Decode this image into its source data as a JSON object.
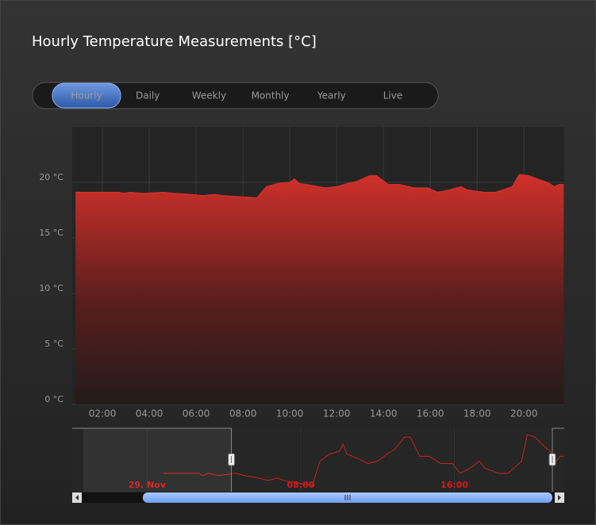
{
  "chart_data": {
    "type": "area",
    "title": "Hourly Temperature Measurements [°C]",
    "range_selector": [
      "Hourly",
      "Daily",
      "Weekly",
      "Monthly",
      "Yearly",
      "Live"
    ],
    "selected_range": "Hourly",
    "x": [
      0.85,
      2.7,
      2.9,
      3.2,
      3.7,
      4.6,
      5.1,
      5.8,
      6.3,
      6.8,
      7.1,
      7.8,
      8.6,
      9.0,
      9.5,
      10.0,
      10.2,
      10.4,
      11.0,
      11.5,
      12.0,
      12.5,
      12.9,
      13.4,
      13.7,
      14.2,
      14.7,
      15.3,
      15.9,
      16.3,
      16.8,
      17.3,
      17.6,
      18.3,
      18.8,
      19.5,
      19.8,
      20.2,
      20.7,
      21.0,
      21.3,
      21.5,
      21.7
    ],
    "series": [
      {
        "name": "Temperature",
        "color": "#d0302a",
        "values": [
          19.1,
          19.1,
          19.0,
          19.1,
          19.0,
          19.1,
          19.0,
          18.9,
          18.8,
          18.9,
          18.8,
          18.7,
          18.6,
          19.6,
          19.9,
          20.0,
          20.3,
          19.9,
          19.7,
          19.5,
          19.6,
          19.9,
          20.1,
          20.6,
          20.6,
          19.8,
          19.8,
          19.5,
          19.5,
          19.1,
          19.3,
          19.6,
          19.3,
          19.1,
          19.1,
          19.6,
          20.7,
          20.6,
          20.2,
          20.0,
          19.6,
          19.8,
          19.8
        ]
      }
    ],
    "xlim": [
      0.71,
      21.72
    ],
    "xticks": [
      {
        "value": 2,
        "label": "02:00"
      },
      {
        "value": 4,
        "label": "04:00"
      },
      {
        "value": 6,
        "label": "06:00"
      },
      {
        "value": 8,
        "label": "08:00"
      },
      {
        "value": 10,
        "label": "10:00"
      },
      {
        "value": 12,
        "label": "12:00"
      },
      {
        "value": 14,
        "label": "14:00"
      },
      {
        "value": 16,
        "label": "16:00"
      },
      {
        "value": 18,
        "label": "18:00"
      },
      {
        "value": 20,
        "label": "20:00"
      }
    ],
    "ylim": [
      0,
      25
    ],
    "yticks": [
      {
        "value": 0,
        "label": "0 °C"
      },
      {
        "value": 5,
        "label": "5 °C"
      },
      {
        "value": 10,
        "label": "10 °C"
      },
      {
        "value": 15,
        "label": "15 °C"
      },
      {
        "value": 20,
        "label": "20 °C"
      }
    ],
    "grid": true,
    "navigator": {
      "xlim": [
        -3.9,
        21.72
      ],
      "ylim": [
        18.4,
        20.8
      ],
      "xticks": [
        {
          "value": 0,
          "label": "29. Nov"
        },
        {
          "value": 8,
          "label": "08:00"
        },
        {
          "value": 16,
          "label": "16:00"
        }
      ],
      "color": "#c8231e"
    }
  }
}
